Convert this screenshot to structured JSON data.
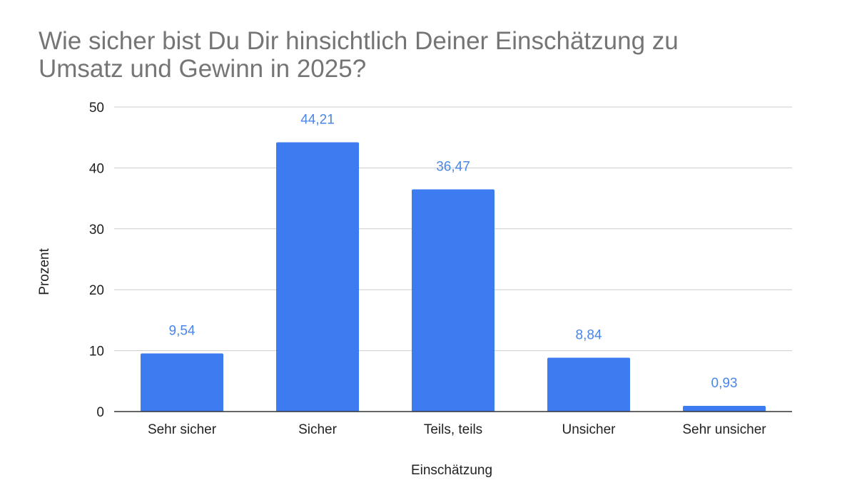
{
  "chart_data": {
    "type": "bar",
    "title": "Wie sicher bist Du Dir hinsichtlich Deiner Einschätzung zu Umsatz und Gewinn in 2025?",
    "xlabel": "Einschätzung",
    "ylabel": "Prozent",
    "categories": [
      "Sehr sicher",
      "Sicher",
      "Teils, teils",
      "Unsicher",
      "Sehr unsicher"
    ],
    "values": [
      9.54,
      44.21,
      36.47,
      8.84,
      0.93
    ],
    "data_labels": [
      "9,54",
      "44,21",
      "36,47",
      "8,84",
      "0,93"
    ],
    "ylim": [
      0,
      50
    ],
    "yticks": [
      "0",
      "10",
      "20",
      "30",
      "40",
      "50"
    ],
    "grid": true,
    "legend": "none",
    "colors": {
      "bar": "#3d7cf0",
      "data_label": "#4a86e8",
      "grid": "#cccccc",
      "baseline": "#333333",
      "title": "#757575"
    }
  }
}
